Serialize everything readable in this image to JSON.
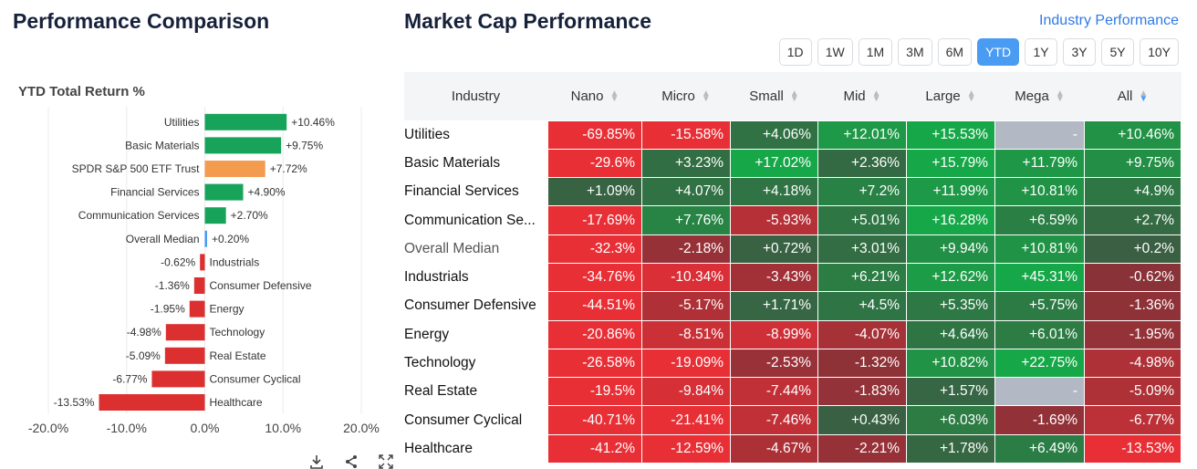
{
  "left_title": "Performance Comparison",
  "right_title": "Market Cap Performance",
  "industry_link": "Industry Performance",
  "periods": [
    "1D",
    "1W",
    "1M",
    "3M",
    "6M",
    "YTD",
    "1Y",
    "3Y",
    "5Y",
    "10Y"
  ],
  "active_period": "YTD",
  "colors": {
    "positive_bar": "#17a35a",
    "negative_bar": "#dc2f2f",
    "benchmark_bar": "#f39b4f",
    "median_bar": "#4a9cf2",
    "na_cell": "#b3b9c4"
  },
  "icons": [
    "download-icon",
    "share-icon",
    "expand-icon"
  ],
  "chart_data": {
    "type": "bar",
    "orientation": "horizontal",
    "title": "YTD Total Return %",
    "categories": [
      "Utilities",
      "Basic Materials",
      "SPDR S&P 500 ETF Trust",
      "Financial Services",
      "Communication Services",
      "Overall Median",
      "Industrials",
      "Consumer Defensive",
      "Energy",
      "Technology",
      "Real Estate",
      "Consumer Cyclical",
      "Healthcare"
    ],
    "values": [
      10.46,
      9.75,
      7.72,
      4.9,
      2.7,
      0.2,
      -0.62,
      -1.36,
      -1.95,
      -4.98,
      -5.09,
      -6.77,
      -13.53
    ],
    "labels": [
      "+10.46%",
      "+9.75%",
      "+7.72%",
      "+4.90%",
      "+2.70%",
      "+0.20%",
      "-0.62%",
      "-1.36%",
      "-1.95%",
      "-4.98%",
      "-5.09%",
      "-6.77%",
      "-13.53%"
    ],
    "xlim": [
      -20,
      20
    ],
    "xticks": [
      "-20.0%",
      "-10.0%",
      "0.0%",
      "10.0%",
      "20.0%"
    ],
    "grid": true
  },
  "table": {
    "columns": [
      "Industry",
      "Nano",
      "Micro",
      "Small",
      "Mid",
      "Large",
      "Mega",
      "All"
    ],
    "sorted_column": "All",
    "rows": [
      {
        "name": "Utilities",
        "values": [
          "-69.85%",
          "-15.58%",
          "+4.06%",
          "+12.01%",
          "+15.53%",
          "-",
          "+10.46%"
        ]
      },
      {
        "name": "Basic Materials",
        "values": [
          "-29.6%",
          "+3.23%",
          "+17.02%",
          "+2.36%",
          "+15.79%",
          "+11.79%",
          "+9.75%"
        ]
      },
      {
        "name": "Financial Services",
        "values": [
          "+1.09%",
          "+4.07%",
          "+4.18%",
          "+7.2%",
          "+11.99%",
          "+10.81%",
          "+4.9%"
        ]
      },
      {
        "name": "Communication Se...",
        "values": [
          "-17.69%",
          "+7.76%",
          "-5.93%",
          "+5.01%",
          "+16.28%",
          "+6.59%",
          "+2.7%"
        ]
      },
      {
        "name": "Overall Median",
        "values": [
          "-32.3%",
          "-2.18%",
          "+0.72%",
          "+3.01%",
          "+9.94%",
          "+10.81%",
          "+0.2%"
        ]
      },
      {
        "name": "Industrials",
        "values": [
          "-34.76%",
          "-10.34%",
          "-3.43%",
          "+6.21%",
          "+12.62%",
          "+45.31%",
          "-0.62%"
        ]
      },
      {
        "name": "Consumer Defensive",
        "values": [
          "-44.51%",
          "-5.17%",
          "+1.71%",
          "+4.5%",
          "+5.35%",
          "+5.75%",
          "-1.36%"
        ]
      },
      {
        "name": "Energy",
        "values": [
          "-20.86%",
          "-8.51%",
          "-8.99%",
          "-4.07%",
          "+4.64%",
          "+6.01%",
          "-1.95%"
        ]
      },
      {
        "name": "Technology",
        "values": [
          "-26.58%",
          "-19.09%",
          "-2.53%",
          "-1.32%",
          "+10.82%",
          "+22.75%",
          "-4.98%"
        ]
      },
      {
        "name": "Real Estate",
        "values": [
          "-19.5%",
          "-9.84%",
          "-7.44%",
          "-1.83%",
          "+1.57%",
          "-",
          "-5.09%"
        ]
      },
      {
        "name": "Consumer Cyclical",
        "values": [
          "-40.71%",
          "-21.41%",
          "-7.46%",
          "+0.43%",
          "+6.03%",
          "-1.69%",
          "-6.77%"
        ]
      },
      {
        "name": "Healthcare",
        "values": [
          "-41.2%",
          "-12.59%",
          "-4.67%",
          "-2.21%",
          "+1.78%",
          "+6.49%",
          "-13.53%"
        ]
      }
    ]
  }
}
